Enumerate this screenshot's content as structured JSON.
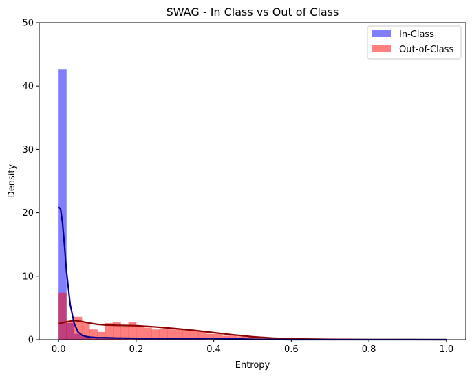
{
  "chart_data": {
    "type": "histogram",
    "title": "SWAG - In Class vs Out of Class",
    "xlabel": "Entropy",
    "ylabel": "Density",
    "xlim": [
      -0.05,
      1.05
    ],
    "ylim": [
      0,
      50
    ],
    "xticks": [
      0.0,
      0.2,
      0.4,
      0.6,
      0.8,
      1.0
    ],
    "xtick_labels": [
      "0.0",
      "0.2",
      "0.4",
      "0.6",
      "0.8",
      "1.0"
    ],
    "yticks": [
      0,
      10,
      20,
      30,
      40,
      50
    ],
    "ytick_labels": [
      "0",
      "10",
      "20",
      "30",
      "40",
      "50"
    ],
    "grid": false,
    "legend_position": "top-right",
    "bin_edges": [
      0.0,
      0.02,
      0.04,
      0.06,
      0.08,
      0.1,
      0.12,
      0.14,
      0.16,
      0.18,
      0.2,
      0.22,
      0.24,
      0.26,
      0.28,
      0.3,
      0.32,
      0.34,
      0.36,
      0.38,
      0.4,
      0.42,
      0.44,
      0.46,
      0.48,
      0.5,
      0.52,
      0.54,
      0.56,
      0.58,
      0.6,
      0.62,
      0.64,
      0.66,
      0.68,
      0.7,
      0.72,
      0.74,
      0.76,
      0.78,
      0.8,
      0.82,
      0.84,
      0.86,
      0.88,
      0.9,
      0.92,
      0.94,
      0.96,
      0.98,
      1.0
    ],
    "series": [
      {
        "name": "In-Class",
        "color": "#0000ff",
        "alpha": 0.5,
        "kde_color": "#00008b",
        "values": [
          42.6,
          2.6,
          0.9,
          0.5,
          0.3,
          0.2,
          0.4,
          0.2,
          0.1,
          0.0,
          0.1,
          0.2,
          0.1,
          0.1,
          0.2,
          0.3,
          0.2,
          0.1,
          0.1,
          0.0,
          0.2,
          0.3,
          0.3,
          0.1,
          0.0,
          0.0,
          0.0,
          0.0,
          0.0,
          0.0,
          0.0,
          0.0,
          0.0,
          0.0,
          0.0,
          0.0,
          0.0,
          0.0,
          0.0,
          0.0,
          0.0,
          0.0,
          0.0,
          0.0,
          0.0,
          0.0,
          0.0,
          0.0,
          0.0,
          0.0
        ],
        "kde": {
          "x": [
            0.0,
            0.005,
            0.01,
            0.015,
            0.02,
            0.03,
            0.04,
            0.05,
            0.06,
            0.07,
            0.08,
            0.1,
            0.12,
            0.15,
            0.2,
            0.25,
            0.3,
            0.35,
            0.4,
            0.45,
            0.5,
            0.6,
            0.7,
            0.8,
            0.9,
            1.0
          ],
          "y": [
            20.9,
            20.6,
            18.5,
            15.0,
            11.0,
            5.5,
            2.6,
            1.2,
            0.7,
            0.5,
            0.4,
            0.3,
            0.3,
            0.25,
            0.2,
            0.2,
            0.2,
            0.2,
            0.2,
            0.15,
            0.05,
            0.0,
            0.0,
            0.0,
            0.0,
            0.0
          ]
        }
      },
      {
        "name": "Out-of-Class",
        "color": "#ff0000",
        "alpha": 0.5,
        "kde_color": "#8b0000",
        "values": [
          7.4,
          2.9,
          3.6,
          2.7,
          1.6,
          1.2,
          2.6,
          2.8,
          2.1,
          2.8,
          2.0,
          1.9,
          1.6,
          1.7,
          1.6,
          1.6,
          1.6,
          1.4,
          1.3,
          0.9,
          0.9,
          0.6,
          0.8,
          0.5,
          0.4,
          0.3,
          0.3,
          0.2,
          0.2,
          0.15,
          0.15,
          0.1,
          0.1,
          0.1,
          0.05,
          0.05,
          0.05,
          0.05,
          0.0,
          0.0,
          0.05,
          0.0,
          0.0,
          0.0,
          0.0,
          0.0,
          0.0,
          0.0,
          0.0,
          0.0
        ],
        "kde": {
          "x": [
            0.0,
            0.02,
            0.04,
            0.06,
            0.08,
            0.1,
            0.12,
            0.15,
            0.2,
            0.25,
            0.3,
            0.35,
            0.4,
            0.45,
            0.5,
            0.55,
            0.6,
            0.7,
            0.8,
            0.9,
            1.0
          ],
          "y": [
            2.5,
            2.8,
            3.0,
            2.85,
            2.6,
            2.4,
            2.3,
            2.25,
            2.2,
            2.0,
            1.75,
            1.45,
            1.1,
            0.75,
            0.45,
            0.25,
            0.12,
            0.05,
            0.02,
            0.01,
            0.0
          ]
        }
      }
    ]
  }
}
